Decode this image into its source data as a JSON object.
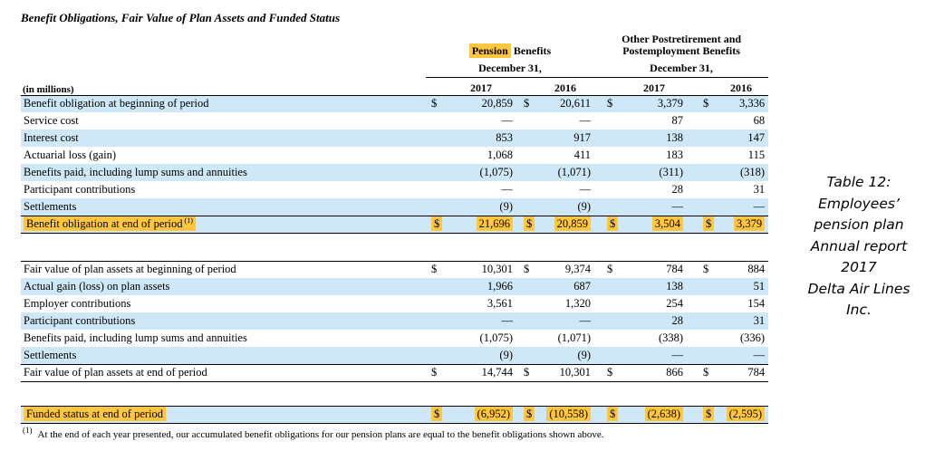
{
  "title": "Benefit Obligations, Fair Value of Plan Assets and Funded Status",
  "colors": {
    "row_shade": "#cfe8f7",
    "highlight": "#ffc63e"
  },
  "header": {
    "pension_highlight": "Pension",
    "pension_rest": " Benefits",
    "opeb_line1": "Other Postretirement and",
    "opeb_line2": "Postemployment Benefits",
    "date_label": "December 31,",
    "in_millions": "(in millions)",
    "years": [
      "2017",
      "2016",
      "2017",
      "2016"
    ]
  },
  "rows": [
    {
      "label": "Benefit obligation at beginning of period",
      "dollar": true,
      "values": [
        "20,859",
        "20,611",
        "3,379",
        "3,336"
      ],
      "shade": true
    },
    {
      "label": "Service cost",
      "dollar": false,
      "values": [
        "—",
        "—",
        "87",
        "68"
      ],
      "shade": false
    },
    {
      "label": "Interest cost",
      "dollar": false,
      "values": [
        "853",
        "917",
        "138",
        "147"
      ],
      "shade": true
    },
    {
      "label": "Actuarial loss (gain)",
      "dollar": false,
      "values": [
        "1,068",
        "411",
        "183",
        "115"
      ],
      "shade": false
    },
    {
      "label": "Benefits paid, including lump sums and annuities",
      "dollar": false,
      "values": [
        "(1,075)",
        "(1,071)",
        "(311)",
        "(318)"
      ],
      "shade": true
    },
    {
      "label": "Participant contributions",
      "dollar": false,
      "values": [
        "—",
        "—",
        "28",
        "31"
      ],
      "shade": false
    },
    {
      "label": "Settlements",
      "dollar": false,
      "values": [
        "(9)",
        "(9)",
        "—",
        "—"
      ],
      "shade": true
    },
    {
      "label": "Benefit obligation at end of period",
      "sup": "(1)",
      "dollar": true,
      "values": [
        "21,696",
        "20,859",
        "3,504",
        "3,379"
      ],
      "shade": true,
      "hl": true,
      "bt": true,
      "bb": true
    },
    {
      "spacer": 31
    },
    {
      "label": "Fair value of plan assets at beginning of period",
      "dollar": true,
      "values": [
        "10,301",
        "9,374",
        "784",
        "884"
      ],
      "shade": false,
      "bt": true
    },
    {
      "label": "Actual gain (loss) on plan assets",
      "dollar": false,
      "values": [
        "1,966",
        "687",
        "138",
        "51"
      ],
      "shade": true
    },
    {
      "label": "Employer contributions",
      "dollar": false,
      "values": [
        "3,561",
        "1,320",
        "254",
        "154"
      ],
      "shade": false
    },
    {
      "label": "Participant contributions",
      "dollar": false,
      "values": [
        "—",
        "—",
        "28",
        "31"
      ],
      "shade": true
    },
    {
      "label": "Benefits paid, including lump sums and annuities",
      "dollar": false,
      "values": [
        "(1,075)",
        "(1,071)",
        "(338)",
        "(336)"
      ],
      "shade": false
    },
    {
      "label": "Settlements",
      "dollar": false,
      "values": [
        "(9)",
        "(9)",
        "—",
        "—"
      ],
      "shade": true
    },
    {
      "label": "Fair value of plan assets at end of period",
      "dollar": true,
      "values": [
        "14,744",
        "10,301",
        "866",
        "784"
      ],
      "shade": false,
      "bt": true,
      "bb": true
    },
    {
      "spacer": 27
    },
    {
      "label": "Funded status at end of period",
      "dollar": true,
      "values": [
        "(6,952)",
        "(10,558)",
        "(2,638)",
        "(2,595)"
      ],
      "shade": true,
      "hl": true,
      "bt": true,
      "bb": true
    }
  ],
  "footnote": {
    "marker": "(1)",
    "text": "At the end of each year presented, our accumulated benefit obligations for our pension plans are equal to the benefit obligations shown above."
  },
  "annotation": {
    "lines": [
      "Table 12:",
      "Employees’",
      "pension plan",
      "Annual report",
      "2017",
      "Delta Air Lines",
      "Inc."
    ]
  }
}
